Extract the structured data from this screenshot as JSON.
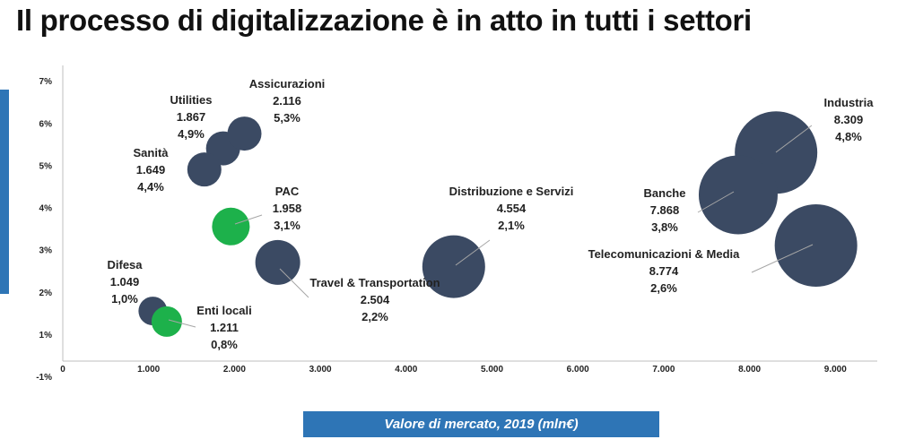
{
  "title": "Il processo di digitalizzazione è in atto in tutti i settori",
  "chart_data": {
    "type": "scatter",
    "title": "Il processo di digitalizzazione è in atto in tutti i settori",
    "xlabel": "Valore di mercato, 2019 (mln€)",
    "ylabel": "",
    "xlim": [
      0,
      9000
    ],
    "ylim": [
      -1,
      7
    ],
    "x_ticks": [
      "0",
      "1.000",
      "2.000",
      "3.000",
      "4.000",
      "5.000",
      "6.000",
      "7.000",
      "8.000",
      "9.000"
    ],
    "y_ticks": [
      "-1%",
      "1%",
      "2%",
      "3%",
      "4%",
      "5%",
      "6%",
      "7%"
    ],
    "grid": false,
    "colors": {
      "bubble": "#3b4a63",
      "highlight": "#1db14b",
      "axis_band": "#2e75b6"
    },
    "points": [
      {
        "name": "Utilities",
        "value": "1.867",
        "growth": "4,9%",
        "x": 1867,
        "y": 5.4,
        "highlight": false
      },
      {
        "name": "Assicurazioni",
        "value": "2.116",
        "growth": "5,3%",
        "x": 2116,
        "y": 5.75,
        "highlight": false
      },
      {
        "name": "Sanità",
        "value": "1.649",
        "growth": "4,4%",
        "x": 1649,
        "y": 4.9,
        "highlight": false
      },
      {
        "name": "PAC",
        "value": "1.958",
        "growth": "3,1%",
        "x": 1958,
        "y": 3.55,
        "highlight": true
      },
      {
        "name": "Travel & Transportation",
        "value": "2.504",
        "growth": "2,2%",
        "x": 2504,
        "y": 2.7,
        "highlight": false
      },
      {
        "name": "Difesa",
        "value": "1.049",
        "growth": "1,0%",
        "x": 1049,
        "y": 1.55,
        "highlight": false
      },
      {
        "name": "Enti locali",
        "value": "1.211",
        "growth": "0,8%",
        "x": 1211,
        "y": 1.3,
        "highlight": true
      },
      {
        "name": "Distribuzione e Servizi",
        "value": "4.554",
        "growth": "2,1%",
        "x": 4554,
        "y": 2.6,
        "highlight": false
      },
      {
        "name": "Industria",
        "value": "8.309",
        "growth": "4,8%",
        "x": 8309,
        "y": 5.3,
        "highlight": false
      },
      {
        "name": "Banche",
        "value": "7.868",
        "growth": "3,8%",
        "x": 7868,
        "y": 4.3,
        "highlight": false
      },
      {
        "name": "Telecomunicazioni & Media",
        "value": "8.774",
        "growth": "2,6%",
        "x": 8774,
        "y": 3.1,
        "highlight": false
      }
    ]
  }
}
